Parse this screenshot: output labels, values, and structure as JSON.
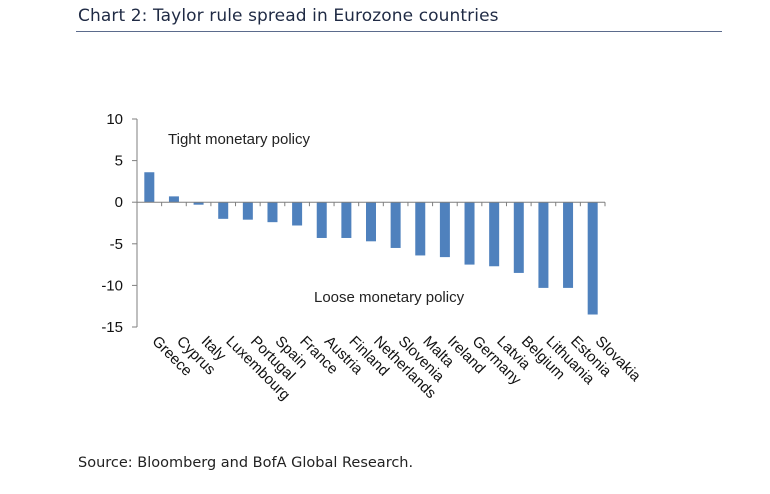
{
  "header": {
    "title": "Chart 2: Taylor rule spread in Eurozone countries"
  },
  "footer": {
    "source": "Source: Bloomberg and BofA Global Research."
  },
  "colors": {
    "bar": "#4f81bd",
    "axis": "#7f7f7f",
    "text": "#111111"
  },
  "chart_data": {
    "type": "bar",
    "title": "Chart 2: Taylor rule spread in Eurozone countries",
    "xlabel": "",
    "ylabel": "",
    "ylim": [
      -15,
      10
    ],
    "yticks": [
      10,
      5,
      0,
      -5,
      -10,
      -15
    ],
    "grid": false,
    "categories": [
      "Greece",
      "Cyprus",
      "Italy",
      "Luxembourg",
      "Portugal",
      "Spain",
      "France",
      "Austria",
      "Finland",
      "Netherlands",
      "Slovenia",
      "Malta",
      "Ireland",
      "Germany",
      "Latvia",
      "Belgium",
      "Lithuania",
      "Estonia",
      "Slovakia"
    ],
    "values": [
      3.6,
      0.7,
      -0.3,
      -2.0,
      -2.1,
      -2.4,
      -2.8,
      -4.3,
      -4.3,
      -4.7,
      -5.5,
      -6.4,
      -6.6,
      -7.5,
      -7.7,
      -8.5,
      -10.3,
      -10.3,
      -13.5
    ],
    "annotations": [
      "Tight monetary policy",
      "Loose monetary policy"
    ]
  }
}
